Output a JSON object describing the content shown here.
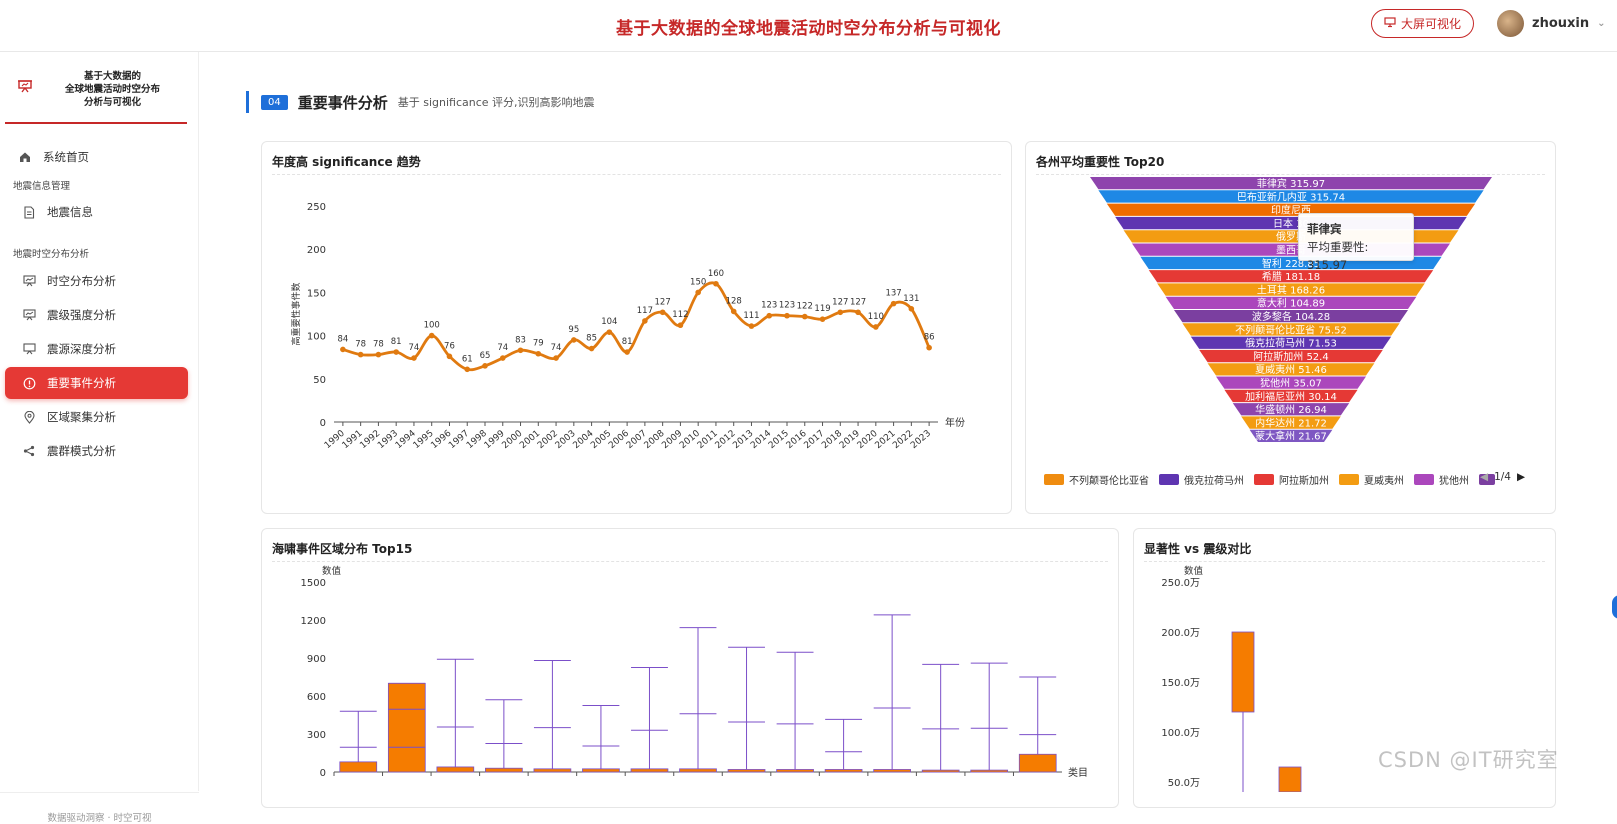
{
  "header": {
    "title": "基于大数据的全球地震活动时空分布分析与可视化",
    "screen_button": "大屏可视化",
    "username": "zhouxin"
  },
  "sidebar": {
    "brand_lines": [
      "基于大数据的",
      "全球地震活动时空分布",
      "分析与可视化"
    ],
    "home": "系统首页",
    "group1": "地震信息管理",
    "item_info": "地震信息",
    "group2": "地震时空分布分析",
    "items": [
      "时空分布分析",
      "震级强度分析",
      "震源深度分析",
      "重要事件分析",
      "区域聚集分析",
      "震群模式分析"
    ],
    "footer": "数据驱动洞察 · 时空可视"
  },
  "section": {
    "number": "04",
    "title": "重要事件分析",
    "subtitle": "基于 significance 评分,识别高影响地震"
  },
  "cards": {
    "trend_title": "年度高 significance 趋势",
    "funnel_title": "各州平均重要性 Top20",
    "tsunami_title": "海啸事件区域分布 Top15",
    "sig_title": "显著性 vs 震级对比"
  },
  "tooltip": {
    "name": "菲律宾",
    "label": "平均重要性:",
    "value": "315.97"
  },
  "funnel_legend": {
    "items": [
      "不列颠哥伦比亚省",
      "俄克拉荷马州",
      "阿拉斯加州",
      "夏威夷州",
      "犹他州"
    ],
    "page": "1/4"
  },
  "watermark": "CSDN @IT研究室",
  "colors": {
    "accent_red": "#c62828",
    "active_menu": "#e53935",
    "section_blue": "#1e6fd9",
    "line_orange": "#e07a10",
    "bar_orange": "#f57c00",
    "whisker_purple": "#7b4fc9"
  },
  "chart_data": [
    {
      "type": "line",
      "title": "年度高 significance 趋势",
      "xlabel": "年份",
      "ylabel": "高重要性事件数",
      "x": [
        "1990",
        "1991",
        "1992",
        "1993",
        "1994",
        "1995",
        "1996",
        "1997",
        "1998",
        "1999",
        "2000",
        "2001",
        "2002",
        "2003",
        "2004",
        "2005",
        "2006",
        "2007",
        "2008",
        "2009",
        "2010",
        "2011",
        "2012",
        "2013",
        "2014",
        "2015",
        "2016",
        "2017",
        "2018",
        "2019",
        "2020",
        "2021",
        "2022",
        "2023"
      ],
      "values": [
        84,
        78,
        78,
        81,
        74,
        100,
        76,
        61,
        65,
        74,
        83,
        79,
        74,
        95,
        85,
        104,
        81,
        117,
        127,
        112,
        150,
        160,
        128,
        111,
        123,
        123,
        122,
        119,
        127,
        127,
        110,
        137,
        131,
        86
      ],
      "ylim": [
        0,
        250
      ],
      "yticks": [
        0,
        50,
        100,
        150,
        200,
        250
      ],
      "grid": false
    },
    {
      "type": "funnel",
      "title": "各州平均重要性 Top20",
      "categories": [
        "菲律宾",
        "巴布亚新几内亚",
        "印度尼西亚",
        "日本",
        "俄罗斯",
        "墨西哥",
        "智利",
        "希腊",
        "土耳其",
        "意大利",
        "波多黎各",
        "不列颠哥伦比亚省",
        "俄克拉荷马州",
        "阿拉斯加州",
        "夏威夷州",
        "犹他州",
        "加利福尼亚州",
        "华盛顿州",
        "内华达州",
        "蒙大拿州"
      ],
      "visible_labels": [
        "菲律宾 315.97",
        "巴布亚新几内亚 315.74",
        "印度尼西",
        "日本 30",
        "俄罗斯",
        "墨西哥",
        "智利 228.85",
        "希腊 181.18",
        "土耳其 168.26",
        "意大利 104.89",
        "波多黎各 104.28",
        "不列颠哥伦比亚省 75.52",
        "俄克拉荷马州 71.53",
        "阿拉斯加州 52.4",
        "夏威夷州 51.46",
        "犹他州 35.07",
        "加利福尼亚州 30.14",
        "华盛顿州 26.94",
        "内华达州 21.72",
        "蒙大拿州 21.67"
      ],
      "colors": [
        "#8e44ad",
        "#1e88e5",
        "#ef6c00",
        "#5e35b1",
        "#f39c12",
        "#ab47bc",
        "#1e88e5",
        "#e53935",
        "#f39c12",
        "#ab47bc",
        "#7b3fa0",
        "#f39c12",
        "#5e35b1",
        "#e53935",
        "#f39c12",
        "#ab47bc",
        "#e53935",
        "#8e44ad",
        "#f39c12",
        "#7e57c2"
      ],
      "legend": "bottom"
    },
    {
      "type": "boxplot",
      "title": "海啸事件区域分布 Top15",
      "ylabel": "数值",
      "xlabel": "类目",
      "ylim": [
        0,
        1500
      ],
      "yticks": [
        0,
        300,
        600,
        900,
        1200,
        1500
      ],
      "categories": [
        "",
        "",
        "",
        "",
        "",
        "",
        "",
        "",
        "",
        "",
        "",
        "",
        "",
        "",
        ""
      ],
      "boxes": [
        {
          "low": 0,
          "q1": 0,
          "median": 0,
          "q3": 80,
          "high": 480
        },
        {
          "low": 0,
          "q1": 0,
          "median": 195,
          "q3": 700,
          "high": 700
        },
        {
          "low": 0,
          "q1": 0,
          "median": 0,
          "q3": 40,
          "high": 890
        },
        {
          "low": 0,
          "q1": 0,
          "median": 0,
          "q3": 30,
          "high": 570
        },
        {
          "low": 0,
          "q1": 0,
          "median": 0,
          "q3": 25,
          "high": 880
        },
        {
          "low": 0,
          "q1": 0,
          "median": 0,
          "q3": 25,
          "high": 525
        },
        {
          "low": 0,
          "q1": 0,
          "median": 0,
          "q3": 25,
          "high": 825
        },
        {
          "low": 0,
          "q1": 0,
          "median": 0,
          "q3": 25,
          "high": 1140
        },
        {
          "low": 0,
          "q1": 0,
          "median": 0,
          "q3": 20,
          "high": 985
        },
        {
          "low": 0,
          "q1": 0,
          "median": 0,
          "q3": 20,
          "high": 945
        },
        {
          "low": 0,
          "q1": 0,
          "median": 0,
          "q3": 20,
          "high": 415
        },
        {
          "low": 0,
          "q1": 0,
          "median": 0,
          "q3": 20,
          "high": 1240
        },
        {
          "low": 0,
          "q1": 0,
          "median": 0,
          "q3": 15,
          "high": 850
        },
        {
          "low": 0,
          "q1": 0,
          "median": 0,
          "q3": 15,
          "high": 860
        },
        {
          "low": 0,
          "q1": 0,
          "median": 0,
          "q3": 140,
          "high": 750
        }
      ],
      "inner_lines": [
        195,
        495,
        355,
        225,
        350,
        205,
        330,
        460,
        395,
        380,
        160,
        505,
        340,
        345,
        295
      ]
    },
    {
      "type": "boxplot",
      "title": "显著性 vs 震级对比",
      "ylabel": "数值",
      "ylim": [
        0,
        2500000
      ],
      "yticks": [
        "250.0万",
        "200.0万",
        "150.0万",
        "100.0万",
        "50.0万"
      ],
      "ytick_values": [
        2500000,
        2000000,
        1500000,
        1000000,
        500000
      ],
      "boxes": [
        {
          "q1": 1200000,
          "q3": 2000000,
          "high": 2000000,
          "low": 0
        },
        {
          "q1": 400000,
          "q3": 650000,
          "high": 650000,
          "low": 0
        },
        {
          "q1": 0,
          "q3": 10000,
          "high": 10000,
          "low": 0
        }
      ]
    }
  ]
}
